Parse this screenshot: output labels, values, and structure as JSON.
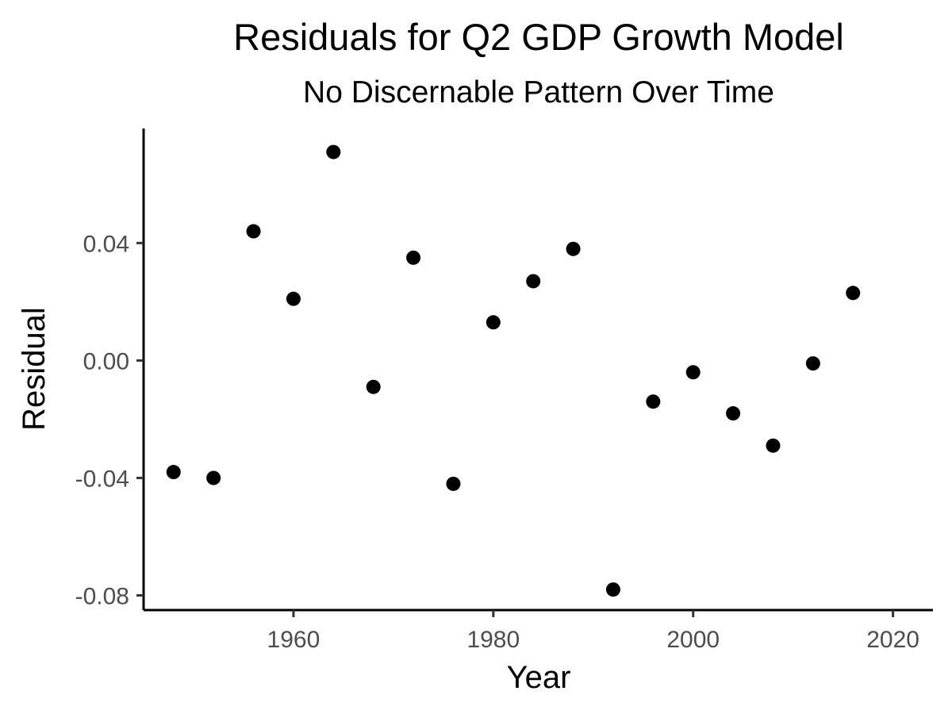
{
  "chart_data": {
    "type": "scatter",
    "title": "Residuals for Q2 GDP Growth Model",
    "subtitle": "No Discernable Pattern Over Time",
    "xlabel": "Year",
    "ylabel": "Residual",
    "xlim": [
      1945,
      2024
    ],
    "ylim": [
      -0.085,
      0.079
    ],
    "xticks": [
      1960,
      1980,
      2000,
      2020
    ],
    "yticks": [
      -0.08,
      -0.04,
      0.0,
      0.04
    ],
    "ytick_labels": [
      "-0.08",
      "-0.04",
      "0.00",
      "0.04"
    ],
    "grid": false,
    "point_color": "#000000",
    "points": [
      {
        "x": 1948,
        "y": -0.038
      },
      {
        "x": 1952,
        "y": -0.04
      },
      {
        "x": 1956,
        "y": 0.044
      },
      {
        "x": 1960,
        "y": 0.021
      },
      {
        "x": 1964,
        "y": 0.071
      },
      {
        "x": 1968,
        "y": -0.009
      },
      {
        "x": 1972,
        "y": 0.035
      },
      {
        "x": 1976,
        "y": -0.042
      },
      {
        "x": 1980,
        "y": 0.013
      },
      {
        "x": 1984,
        "y": 0.027
      },
      {
        "x": 1988,
        "y": 0.038
      },
      {
        "x": 1992,
        "y": -0.078
      },
      {
        "x": 1996,
        "y": -0.014
      },
      {
        "x": 2000,
        "y": -0.004
      },
      {
        "x": 2004,
        "y": -0.018
      },
      {
        "x": 2008,
        "y": -0.029
      },
      {
        "x": 2012,
        "y": -0.001
      },
      {
        "x": 2016,
        "y": 0.023
      }
    ]
  }
}
